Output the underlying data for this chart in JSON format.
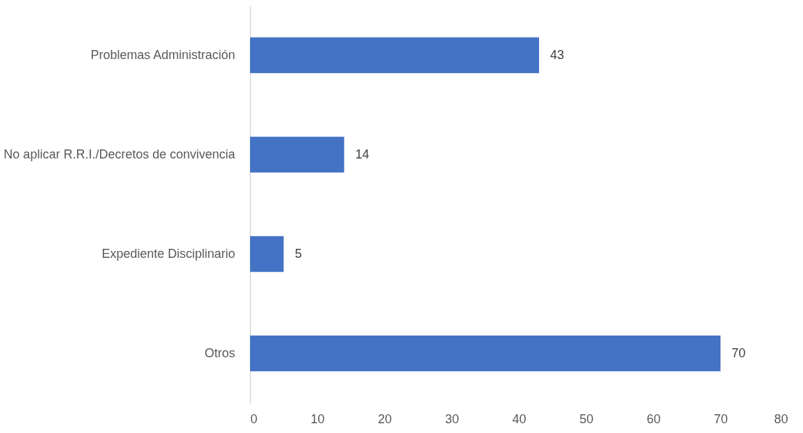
{
  "chart_data": {
    "type": "bar",
    "orientation": "horizontal",
    "categories": [
      "Problemas Administración",
      "No aplicar R.R.I./Decretos de convivencia",
      "Expediente Disciplinario",
      "Otros"
    ],
    "values": [
      43,
      14,
      5,
      70
    ],
    "color": "#4472c4",
    "xlim": [
      0,
      80
    ],
    "xticks": [
      0,
      10,
      20,
      30,
      40,
      50,
      60,
      70,
      80
    ],
    "data_labels": true,
    "grid": false
  }
}
